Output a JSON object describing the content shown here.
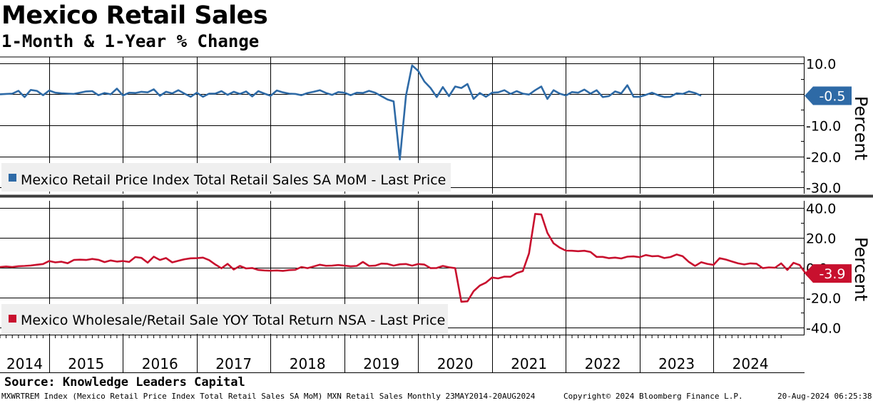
{
  "header": {
    "title": "Mexico Retail Sales",
    "subtitle": "1-Month & 1-Year % Change"
  },
  "footer": {
    "source": "Source: Knowledge Leaders Capital",
    "ticker_info": "MXWRTREM Index (Mexico Retail Price Index Total Retail Sales SA MoM) MXN Retail Sales  Monthly 23MAY2014-20AUG2024",
    "copyright": "Copyright© 2024 Bloomberg Finance L.P.",
    "timestamp": "20-Aug-2024 06:25:38"
  },
  "chart_data": [
    {
      "type": "line",
      "panel": "top",
      "ylabel": "Percent",
      "ylim": [
        -32,
        12
      ],
      "yticks": [
        10,
        0,
        -10,
        -20,
        -30
      ],
      "ytick_labels": [
        "10.0",
        "",
        "-10.0",
        "-20.0",
        "-30.0"
      ],
      "last_value": -0.5,
      "last_value_label": "-0.5",
      "color": "#2e6aa6",
      "grid": true,
      "legend_placement": "bottom-left",
      "series": [
        {
          "name": "Mexico Retail Price Index Total Retail Sales SA MoM - Last Price",
          "x_start": "2014-05",
          "values": [
            0,
            0.1,
            0.2,
            1.1,
            -0.9,
            1.4,
            1.1,
            -0.3,
            1.2,
            0.5,
            0.3,
            0.2,
            0.1,
            0.5,
            0.9,
            1,
            -0.3,
            0.4,
            0,
            1.8,
            -0.4,
            0.5,
            0.4,
            0.8,
            0.6,
            1.6,
            -0.5,
            0.8,
            0.3,
            1.3,
            0.2,
            -0.8,
            0.5,
            -0.8,
            0.2,
            0.2,
            1,
            -0.2,
            0.8,
            0.1,
            0.9,
            -0.7,
            1,
            0.2,
            -0.5,
            1.2,
            0.6,
            0.2,
            0.1,
            -0.3,
            0.4,
            0.8,
            1.3,
            0.4,
            -0.2,
            0.7,
            0.5,
            -0.3,
            0.5,
            0.4,
            1.1,
            0.5,
            -0.6,
            -1.7,
            -2.3,
            -21,
            -0.5,
            9.3,
            7.5,
            4.1,
            2,
            -0.9,
            2.3,
            -0.6,
            2.5,
            2,
            3.3,
            -1.5,
            0.4,
            -0.8,
            0.5,
            0.6,
            1.3,
            0.1,
            1,
            0.2,
            -0.1,
            1.3,
            2.5,
            -1.5,
            1.3,
            0.2,
            -0.4,
            0.7,
            0.5,
            1.5,
            0.2,
            1.3,
            -0.9,
            -0.6,
            0.9,
            0.3,
            2.9,
            -0.8,
            -0.8,
            -0.2,
            0.5,
            -0.3,
            -0.9,
            -0.8,
            0.3,
            0.1,
            0.9,
            0.4,
            -0.5
          ]
        }
      ]
    },
    {
      "type": "line",
      "panel": "bottom",
      "ylabel": "Percent",
      "ylim": [
        -45,
        45
      ],
      "yticks": [
        40,
        20,
        0,
        -20,
        -40
      ],
      "ytick_labels": [
        "40.0",
        "20.0",
        "0.0",
        "-20.0",
        "-40.0"
      ],
      "last_value": -3.9,
      "last_value_label": "-3.9",
      "color": "#c8102e",
      "grid": true,
      "legend_placement": "bottom-left",
      "series": [
        {
          "name": "Mexico Wholesale/Retail Sale YOY Total Return NSA - Last Price",
          "x_start": "2014-05",
          "values": [
            0.5,
            0.8,
            0.5,
            1,
            1.2,
            1.5,
            2,
            2.5,
            4.5,
            3.6,
            4,
            3,
            5.2,
            5.4,
            5.2,
            5.9,
            5.3,
            3.8,
            4.9,
            4.1,
            4.5,
            3.9,
            7.2,
            6.6,
            3.4,
            7.4,
            5.2,
            6.5,
            3.6,
            4.7,
            5.7,
            6.3,
            6.4,
            6.8,
            5.1,
            2.2,
            -0.4,
            2.6,
            -1.2,
            1.2,
            -0.5,
            -0.2,
            -1.5,
            -1.8,
            -2,
            -1.8,
            -2.1,
            -1.6,
            -1.4,
            0.5,
            -0.3,
            0.8,
            2,
            1.3,
            1.4,
            1.8,
            1.4,
            0.9,
            1.2,
            3.9,
            1.2,
            1.4,
            2.8,
            2.6,
            1.4,
            2.3,
            2.5,
            1.4,
            2.5,
            2.1,
            -0.3,
            -0.2,
            1.2,
            0.3,
            -0.3,
            -22.9,
            -22.6,
            -15.8,
            -12,
            -10,
            -6.6,
            -7.2,
            -6,
            -6.1,
            -3.6,
            -2.3,
            9.6,
            36.2,
            35.8,
            23.4,
            16.4,
            13.5,
            11.5,
            11.4,
            11.1,
            11.4,
            10.6,
            7.3,
            7.3,
            6.4,
            6.8,
            6.2,
            7.4,
            7.6,
            7.1,
            8.5,
            7.7,
            7.9,
            6.5,
            7.2,
            8.9,
            7.7,
            3.9,
            1.2,
            3.7,
            2.6,
            1.9,
            6.4,
            5.5,
            4.2,
            2.9,
            2.2,
            2.9,
            2.7,
            -0.3,
            0.2,
            0,
            2.9,
            -1.5,
            3.3,
            1.8,
            -3.9
          ]
        }
      ]
    }
  ],
  "x_axis": {
    "year_labels": [
      "2014",
      "2015",
      "2016",
      "2017",
      "2018",
      "2019",
      "2020",
      "2021",
      "2022",
      "2023",
      "2024"
    ],
    "start": "2014-05",
    "end": "2024-08"
  }
}
